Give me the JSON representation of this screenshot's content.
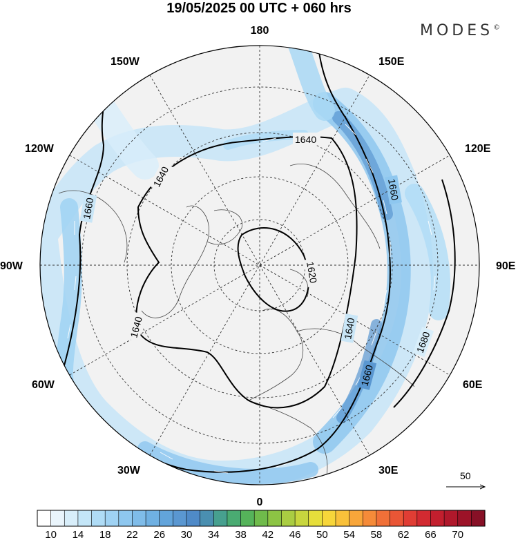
{
  "title": "19/05/2025  00 UTC  + 060 hrs",
  "brand": {
    "name": "MODES",
    "mark": "©"
  },
  "longitude_labels": {
    "top": "180",
    "bottom": "0",
    "left": "90W",
    "right": "90E",
    "upper_left_1": "150W",
    "upper_left_2": "120W",
    "upper_right_1": "150E",
    "upper_right_2": "120E",
    "lower_left_1": "60W",
    "lower_left_2": "30W",
    "lower_right_1": "60E",
    "lower_right_2": "30E"
  },
  "contour_labels": [
    "1640",
    "1640",
    "1660",
    "1640",
    "1620",
    "1640",
    "1660",
    "1660",
    "1680"
  ],
  "vector_reference": {
    "label": "50"
  },
  "colorbar": {
    "labels": [
      "10",
      "14",
      "18",
      "22",
      "26",
      "30",
      "34",
      "38",
      "42",
      "46",
      "50",
      "54",
      "58",
      "62",
      "66",
      "70"
    ],
    "colors": [
      "#ffffff",
      "#eaf5fc",
      "#d8eefa",
      "#c4e6f8",
      "#afdcf6",
      "#9fd2f3",
      "#8ec7ef",
      "#7fbce9",
      "#6fb0e2",
      "#62a4db",
      "#5a97d1",
      "#4f8ac8",
      "#4a8fb0",
      "#47a08f",
      "#4aab72",
      "#55b35a",
      "#6fbb4b",
      "#8cc444",
      "#aacd42",
      "#c8d63e",
      "#e6de3b",
      "#f7d63a",
      "#f9c13a",
      "#f8a63a",
      "#f58b39",
      "#f07038",
      "#ea5636",
      "#e03d34",
      "#d22a31",
      "#c21f2e",
      "#b0182b",
      "#9c1328",
      "#871026"
    ]
  },
  "colors": {
    "ocean_fill": "#f2f2f2",
    "jet": "#5b9bd5",
    "contour": "#000000"
  }
}
